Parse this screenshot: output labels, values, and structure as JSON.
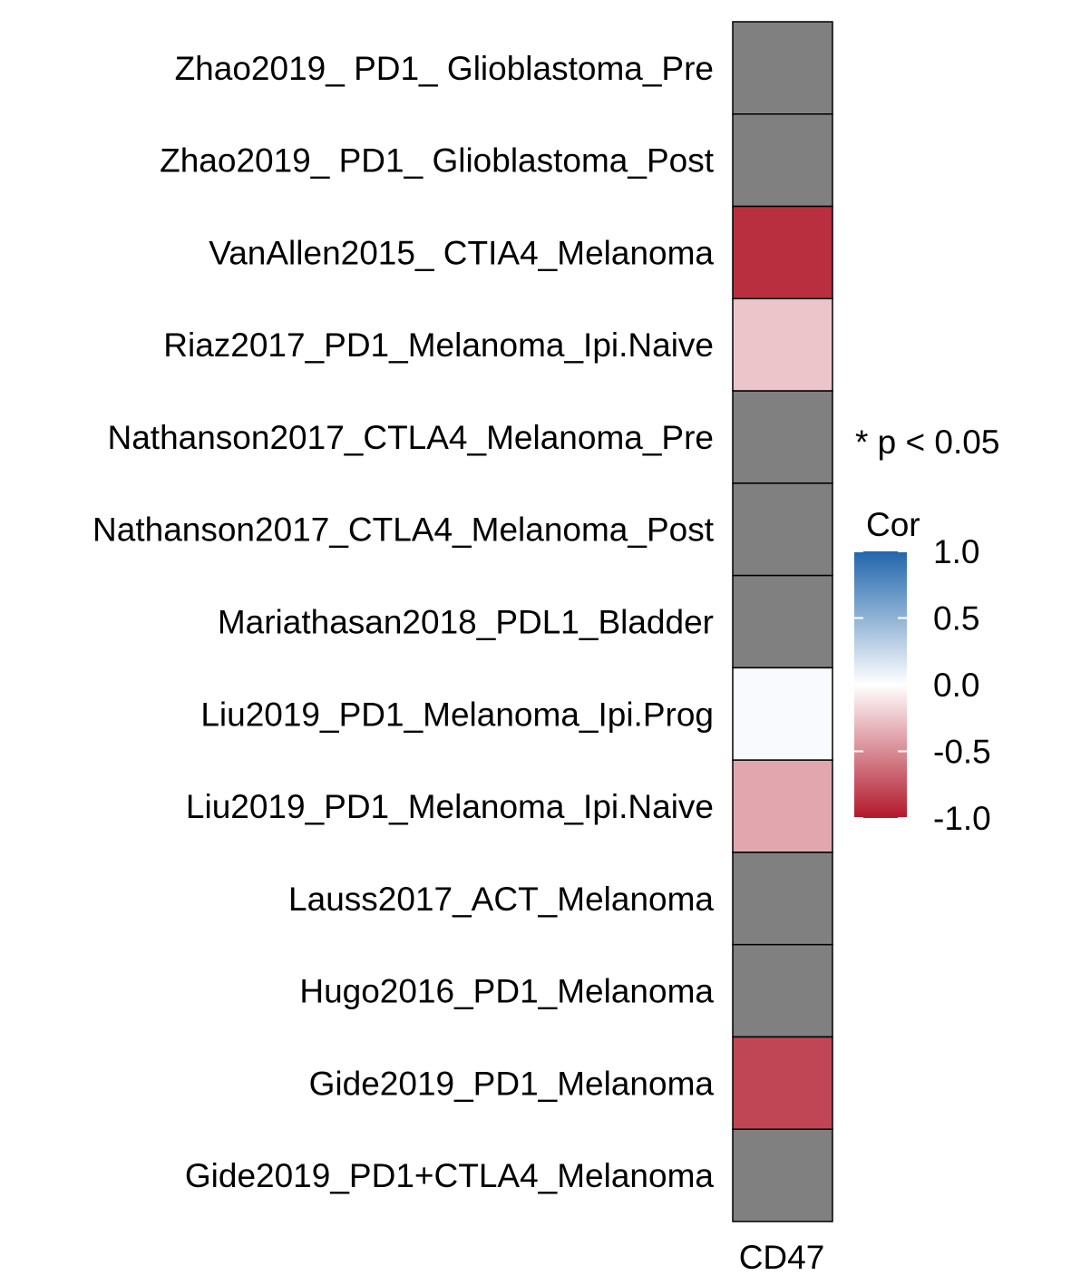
{
  "chart_data": {
    "type": "heatmap",
    "columns": [
      "CD47"
    ],
    "rows": [
      "Zhao2019_ PD1_ Glioblastoma_Pre",
      "Zhao2019_ PD1_ Glioblastoma_Post",
      "VanAllen2015_ CTIA4_Melanoma",
      "Riaz2017_PD1_Melanoma_Ipi.Naive",
      "Nathanson2017_CTLA4_Melanoma_Pre",
      "Nathanson2017_CTLA4_Melanoma_Post",
      "Mariathasan2018_PDL1_Bladder",
      "Liu2019_PD1_Melanoma_Ipi.Prog",
      "Liu2019_PD1_Melanoma_Ipi.Naive",
      "Lauss2017_ACT_Melanoma",
      "Hugo2016_PD1_Melanoma",
      "Gide2019_PD1_Melanoma",
      "Gide2019_PD1+CTLA4_Melanoma"
    ],
    "values": [
      null,
      null,
      -0.9,
      -0.25,
      null,
      null,
      null,
      0.03,
      -0.38,
      null,
      null,
      -0.8,
      null
    ],
    "na_color": "#808080",
    "color_scale": {
      "min": -1.0,
      "max": 1.0,
      "low_color": "#B2182B",
      "mid_color": "#FFFFFF",
      "high_color": "#2166AC"
    },
    "legend": {
      "note": "* p < 0.05",
      "title": "Cor",
      "ticks": [
        "1.0",
        "0.5",
        "0.0",
        "-0.5",
        "-1.0"
      ],
      "tick_values": [
        1.0,
        0.5,
        0.0,
        -0.5,
        -1.0
      ],
      "placement": "right"
    }
  }
}
